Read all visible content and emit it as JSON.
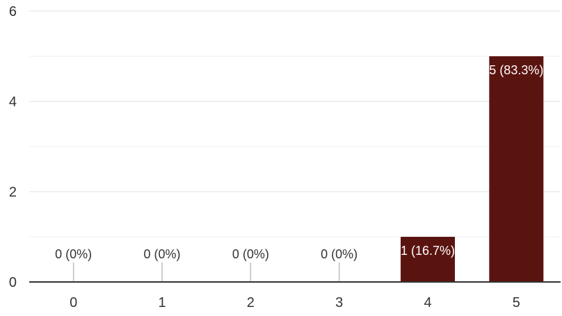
{
  "chart_data": {
    "type": "bar",
    "categories": [
      "0",
      "1",
      "2",
      "3",
      "4",
      "5"
    ],
    "values": [
      0,
      0,
      0,
      0,
      1,
      5
    ],
    "data_labels": [
      "0 (0%)",
      "0 (0%)",
      "0 (0%)",
      "0 (0%)",
      "1 (16.7%)",
      "5 (83.3%)"
    ],
    "y_ticks": [
      "0",
      "2",
      "4",
      "6"
    ],
    "ylim": [
      0,
      6
    ],
    "grid": true,
    "bar_color": "#5a1410",
    "title": "",
    "xlabel": "",
    "ylabel": ""
  }
}
